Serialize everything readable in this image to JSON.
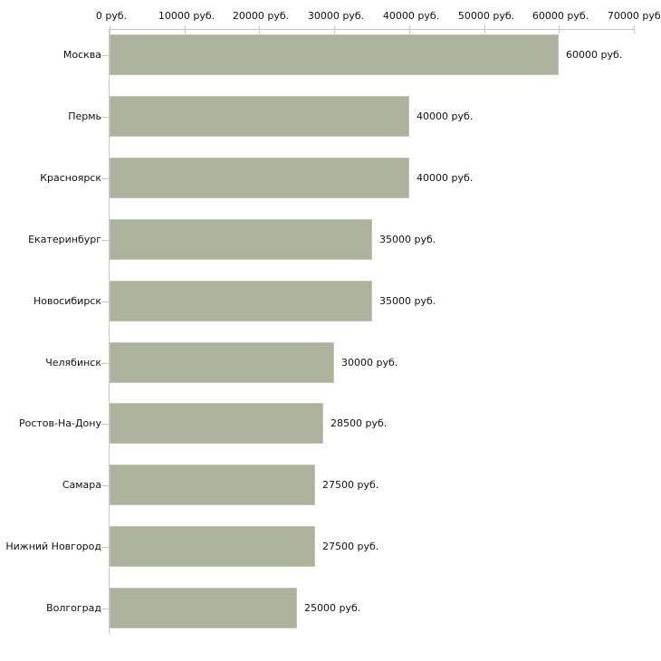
{
  "chart_data": {
    "type": "bar",
    "orientation": "horizontal",
    "title": "",
    "categories": [
      "Москва",
      "Пермь",
      "Красноярск",
      "Екатеринбург",
      "Новосибирск",
      "Челябинск",
      "Ростов-На-Дону",
      "Самара",
      "Нижний Новгород",
      "Волгоград"
    ],
    "values": [
      60000,
      40000,
      40000,
      35000,
      35000,
      30000,
      28500,
      27500,
      27500,
      25000
    ],
    "value_labels": [
      "60000 руб.",
      "40000 руб.",
      "40000 руб.",
      "35000 руб.",
      "35000 руб.",
      "30000 руб.",
      "28500 руб.",
      "27500 руб.",
      "27500 руб.",
      "25000 руб."
    ],
    "unit": "руб.",
    "x_axis": {
      "position": "top",
      "range": [
        0,
        70000
      ],
      "ticks": [
        0,
        10000,
        20000,
        30000,
        40000,
        50000,
        60000,
        70000
      ],
      "tick_labels": [
        "0 руб.",
        "10000 руб.",
        "20000 руб.",
        "30000 руб.",
        "40000 руб.",
        "50000 руб.",
        "60000 руб.",
        "70000 руб."
      ]
    },
    "grid": false,
    "legend": false,
    "colors": {
      "bar_fill": "#acb29b",
      "bar_border": "#c2c7b2",
      "axis_line": "#c6c6c6",
      "tick_mark": "#ccca9e",
      "text": "#111111"
    }
  }
}
